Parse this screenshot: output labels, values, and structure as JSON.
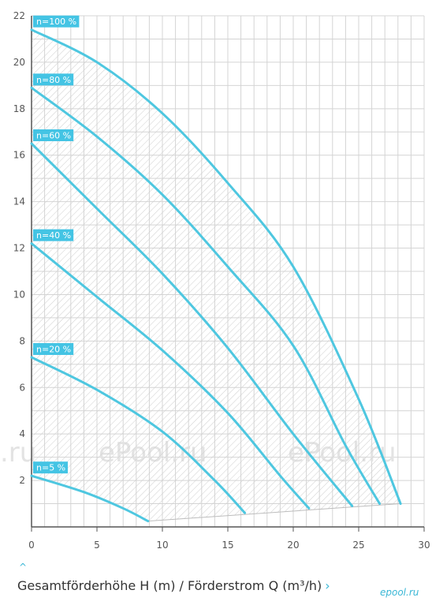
{
  "chart_data": {
    "type": "line",
    "title": "",
    "xlabel": "Gesamtförderhöhe H (m) / Förderstrom Q (m³/h)",
    "ylabel": "",
    "xlim": [
      0,
      30
    ],
    "ylim": [
      0,
      22
    ],
    "x_ticks": [
      0,
      5,
      10,
      15,
      20,
      25,
      30
    ],
    "y_ticks": [
      2,
      4,
      6,
      8,
      10,
      12,
      14,
      16,
      18,
      20,
      22
    ],
    "grid": true,
    "series": [
      {
        "name": "n=100 %",
        "points": [
          [
            0,
            21.4
          ],
          [
            5,
            20.0
          ],
          [
            10,
            17.8
          ],
          [
            15,
            14.8
          ],
          [
            20,
            11.2
          ],
          [
            25,
            5.5
          ],
          [
            28.2,
            1.0
          ]
        ]
      },
      {
        "name": "n=80 %",
        "points": [
          [
            0,
            18.9
          ],
          [
            5,
            16.8
          ],
          [
            10,
            14.3
          ],
          [
            15,
            11.2
          ],
          [
            20,
            7.8
          ],
          [
            24,
            3.5
          ],
          [
            26.6,
            1.0
          ]
        ]
      },
      {
        "name": "n=60 %",
        "points": [
          [
            0,
            16.5
          ],
          [
            5,
            13.7
          ],
          [
            10,
            10.9
          ],
          [
            15,
            7.7
          ],
          [
            20,
            4.0
          ],
          [
            24.5,
            0.9
          ]
        ]
      },
      {
        "name": "n=40 %",
        "points": [
          [
            0,
            12.2
          ],
          [
            5,
            9.9
          ],
          [
            10,
            7.6
          ],
          [
            15,
            4.9
          ],
          [
            19,
            2.2
          ],
          [
            21.2,
            0.8
          ]
        ]
      },
      {
        "name": "n=20 %",
        "points": [
          [
            0,
            7.3
          ],
          [
            5,
            5.9
          ],
          [
            10,
            4.1
          ],
          [
            14,
            2.0
          ],
          [
            16.3,
            0.6
          ]
        ]
      },
      {
        "name": "n=5 %",
        "points": [
          [
            0,
            2.2
          ],
          [
            4,
            1.5
          ],
          [
            7,
            0.8
          ],
          [
            8.9,
            0.25
          ]
        ]
      }
    ],
    "shaded_region_lower_edge": [
      [
        8.9,
        0.25
      ],
      [
        28.2,
        1.0
      ]
    ]
  },
  "caption": {
    "text": "Gesamtförderhöhe H (m) / Förderstrom Q (m³/h)",
    "chevron": "›"
  },
  "up_chevron": "^",
  "watermarks": [
    ".ru",
    "ePool.ru",
    "ePool.ru"
  ],
  "logo": "epool.ru",
  "colors": {
    "curve": "#4ec7e0",
    "label_bg": "#44c4e4",
    "grid": "#d4d4d4",
    "hatch": "#cfcfcf"
  }
}
